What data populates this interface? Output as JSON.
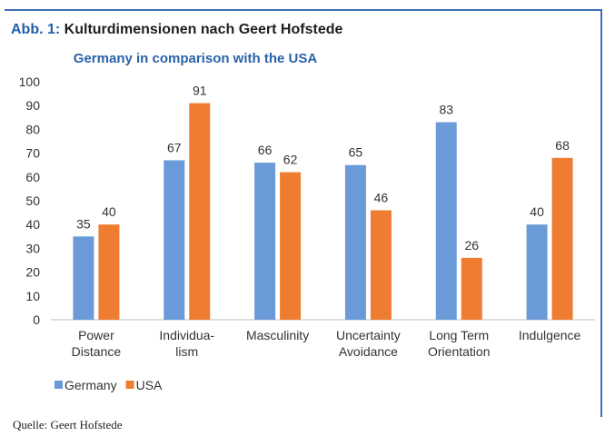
{
  "figure": {
    "number": "Abb. 1:",
    "title": "Kulturdimensionen nach Geert Hofstede",
    "source": "Quelle: Geert Hofstede"
  },
  "chart_data": {
    "type": "bar",
    "title": "Germany in comparison with the USA",
    "categories": [
      [
        "Power",
        "Distance"
      ],
      [
        "Individua-",
        "lism"
      ],
      [
        "Masculinity"
      ],
      [
        "Uncertainty",
        "Avoidance"
      ],
      [
        "Long Term",
        "Orientation"
      ],
      [
        "Indulgence"
      ]
    ],
    "series": [
      {
        "name": "Germany",
        "color": "#6a9bd8",
        "values": [
          35,
          67,
          66,
          65,
          83,
          40
        ]
      },
      {
        "name": "USA",
        "color": "#ef7d31",
        "values": [
          40,
          91,
          62,
          46,
          26,
          68
        ]
      }
    ],
    "ylim": [
      0,
      100
    ],
    "yticks": [
      0,
      10,
      20,
      30,
      40,
      50,
      60,
      70,
      80,
      90,
      100
    ],
    "data_labels": true,
    "legend_position": "bottom-left",
    "grid": false
  }
}
